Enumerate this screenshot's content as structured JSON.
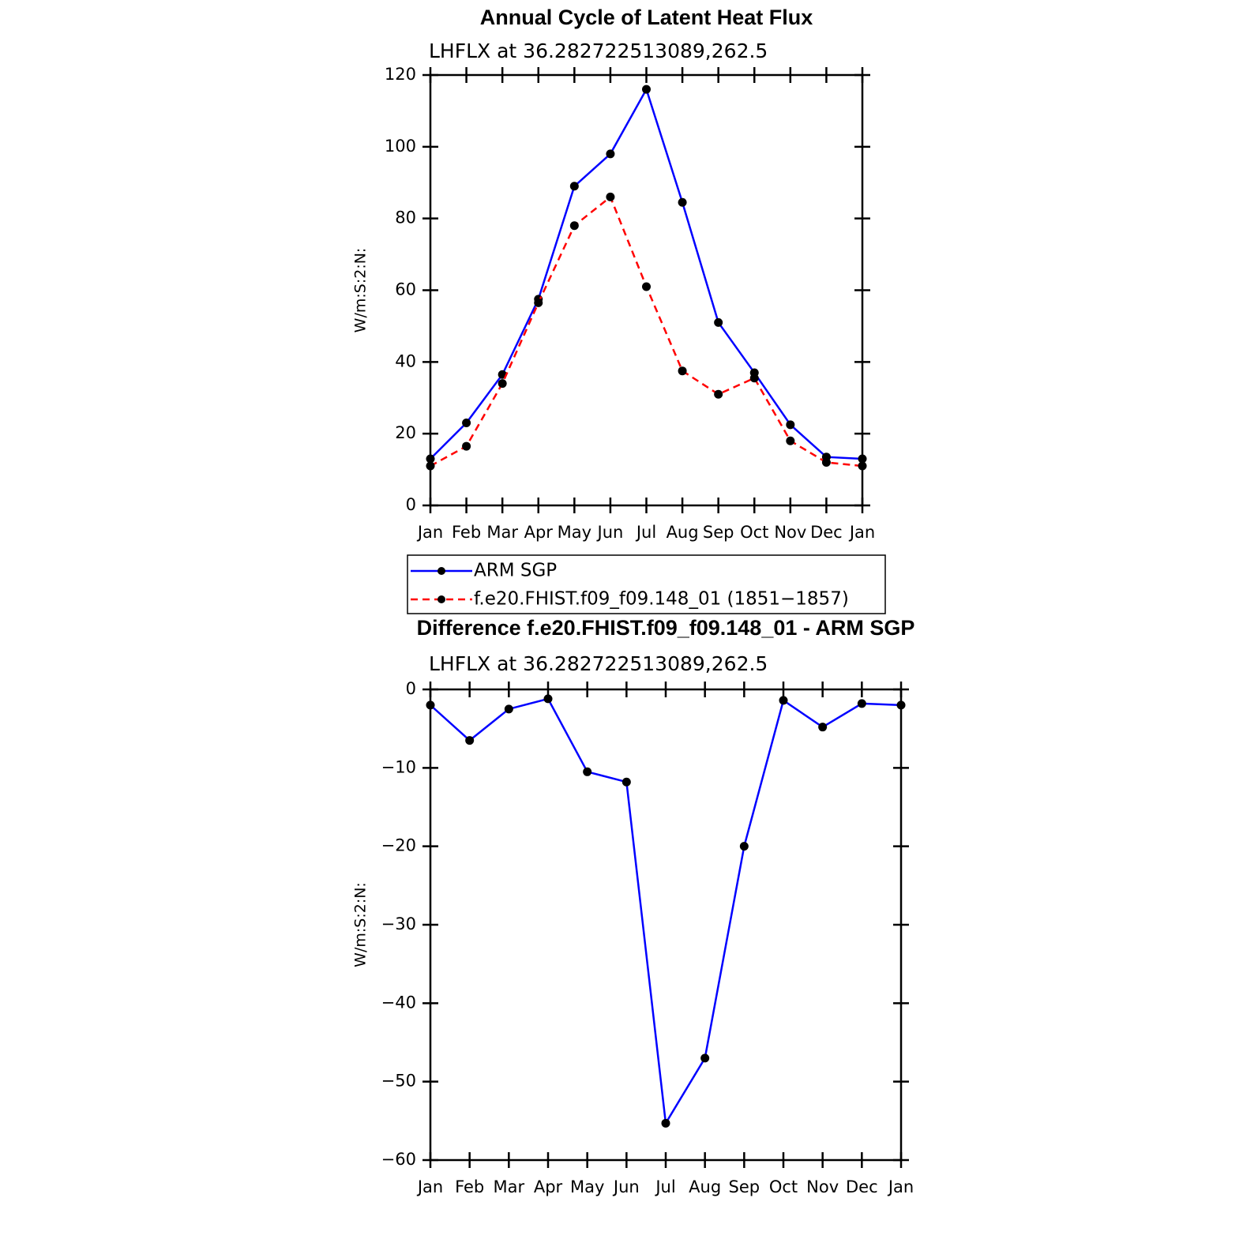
{
  "chart_data": [
    {
      "type": "line",
      "title": "Annual Cycle of Latent Heat Flux",
      "subtitle": "LHFLX  at  36.282722513089,262.5",
      "ylabel": "W/m:S:2:N:",
      "categories": [
        "Jan",
        "Feb",
        "Mar",
        "Apr",
        "May",
        "Jun",
        "Jul",
        "Aug",
        "Sep",
        "Oct",
        "Nov",
        "Dec",
        "Jan"
      ],
      "series": [
        {
          "name": "ARM  SGP",
          "color": "#0000ff",
          "linestyle": "solid",
          "values": [
            13,
            23,
            36.5,
            57.5,
            89,
            98,
            116,
            84.5,
            51,
            37,
            22.5,
            13.5,
            13
          ]
        },
        {
          "name": "f.e20.FHIST.f09_f09.148_01  (1851−1857)",
          "color": "#ff0000",
          "linestyle": "dashed",
          "values": [
            11,
            16.5,
            34,
            56.5,
            78,
            86,
            61,
            37.5,
            31,
            35.5,
            18,
            12,
            11
          ]
        }
      ],
      "marker_color": "#000000",
      "ylim": [
        0,
        120
      ],
      "yticks": [
        0,
        20,
        40,
        60,
        80,
        100,
        120
      ],
      "legend": "bottom"
    },
    {
      "type": "line",
      "title": "Difference f.e20.FHIST.f09_f09.148_01 - ARM SGP",
      "subtitle": "LHFLX  at  36.282722513089,262.5",
      "ylabel": "W/m:S:2:N:",
      "categories": [
        "Jan",
        "Feb",
        "Mar",
        "Apr",
        "May",
        "Jun",
        "Jul",
        "Aug",
        "Sep",
        "Oct",
        "Nov",
        "Dec",
        "Jan"
      ],
      "values": [
        -2,
        -6.5,
        -2.5,
        -1.2,
        -10.5,
        -11.8,
        -55.3,
        -47,
        -20,
        -1.4,
        -4.8,
        -1.8,
        -2
      ],
      "color": "#0000ff",
      "marker_color": "#000000",
      "ylim": [
        -60,
        0
      ],
      "yticks": [
        {
          "value": -60,
          "label": "−60"
        },
        {
          "value": -50,
          "label": "−50"
        },
        {
          "value": -40,
          "label": "−40"
        },
        {
          "value": -30,
          "label": "−30"
        },
        {
          "value": -20,
          "label": "−20"
        },
        {
          "value": -10,
          "label": "−10"
        },
        0
      ]
    }
  ]
}
